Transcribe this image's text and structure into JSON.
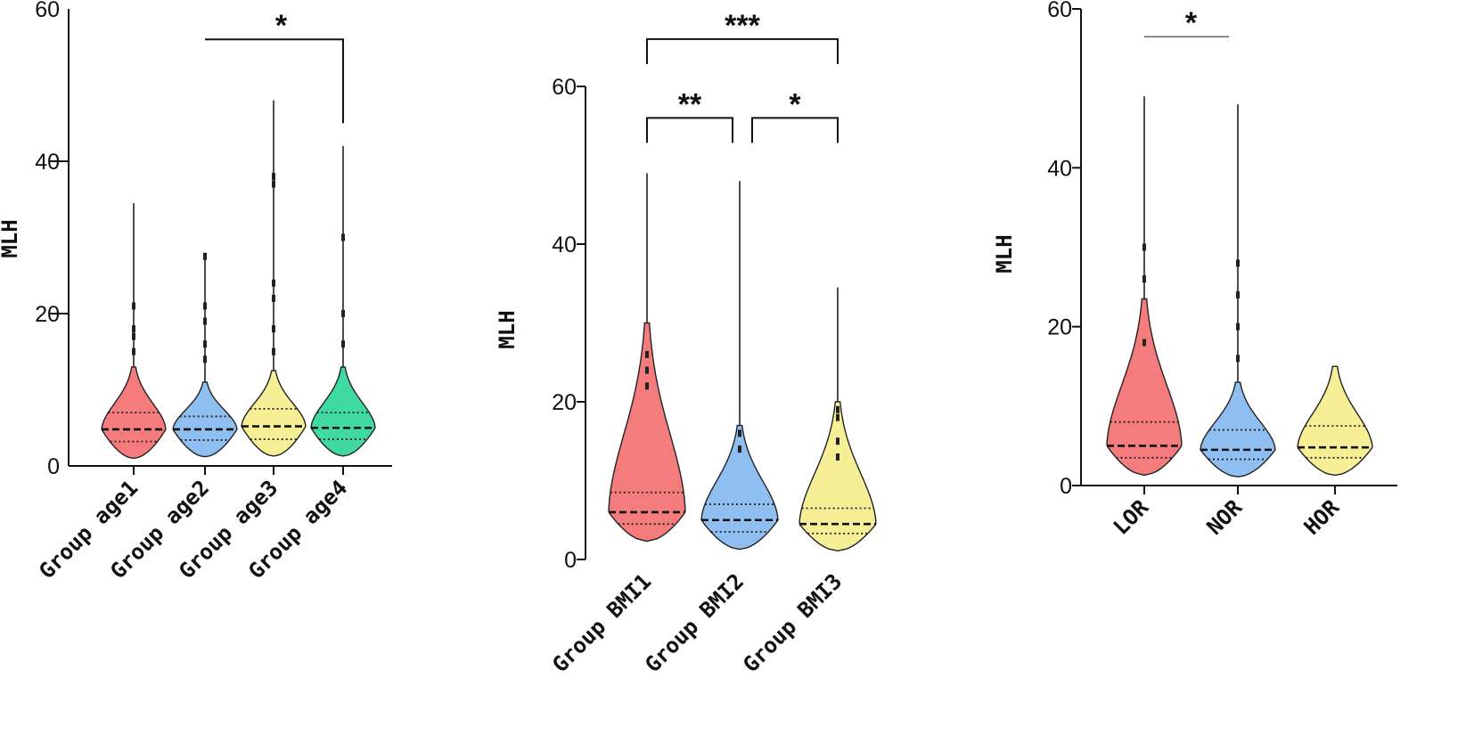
{
  "chart_data": [
    {
      "type": "violin",
      "ylabel": "MLH",
      "ylim": [
        0,
        60
      ],
      "yticks": [
        0,
        20,
        40,
        60
      ],
      "y_tick_marks": [
        20,
        40
      ],
      "categories": [
        "Group age1",
        "Group age2",
        "Group age3",
        "Group age4"
      ],
      "colors": [
        "#f47c7c",
        "#8fbff0",
        "#f7ef96",
        "#3fd9a1"
      ],
      "series": [
        {
          "median": 4.8,
          "q1": 3.2,
          "q3": 7.0,
          "max": 34.5,
          "dense_max": 13,
          "outliers": [
            15,
            17,
            18,
            21
          ]
        },
        {
          "median": 4.8,
          "q1": 3.4,
          "q3": 6.5,
          "max": 28,
          "dense_max": 11,
          "outliers": [
            14,
            16,
            19,
            21,
            27.5
          ]
        },
        {
          "median": 5.2,
          "q1": 3.5,
          "q3": 7.5,
          "max": 48,
          "dense_max": 12.5,
          "outliers": [
            15,
            18,
            22,
            24,
            37,
            38
          ]
        },
        {
          "median": 5.0,
          "q1": 3.5,
          "q3": 7.0,
          "max": 42,
          "dense_max": 13,
          "outliers": [
            16,
            20,
            30
          ]
        }
      ],
      "significance": [
        {
          "from": 1,
          "to": 3,
          "label": "*",
          "y": 56
        }
      ]
    },
    {
      "type": "violin",
      "ylabel": "MLH",
      "ylim": [
        0,
        60
      ],
      "yticks": [
        0,
        20,
        40,
        60
      ],
      "y_tick_marks": [],
      "categories": [
        "Group BMI1",
        "Group BMI2",
        "Group BMI3"
      ],
      "colors": [
        "#f47c7c",
        "#8fbff0",
        "#f7ef96"
      ],
      "series": [
        {
          "median": 6.0,
          "q1": 4.5,
          "q3": 8.5,
          "max": 49,
          "dense_max": 30,
          "outliers": [
            22,
            24,
            26
          ]
        },
        {
          "median": 5.0,
          "q1": 3.5,
          "q3": 7.0,
          "max": 48,
          "dense_max": 17,
          "outliers": [
            14,
            16
          ]
        },
        {
          "median": 4.5,
          "q1": 3.3,
          "q3": 6.5,
          "max": 34.5,
          "dense_max": 20,
          "outliers": [
            13,
            15,
            18,
            19
          ]
        }
      ],
      "significance": [
        {
          "from": 0,
          "to": 1,
          "label": "**",
          "y": 56
        },
        {
          "from": 1,
          "to": 2,
          "label": "*",
          "y": 56
        },
        {
          "from": 0,
          "to": 2,
          "label": "***",
          "y": 66
        }
      ]
    },
    {
      "type": "violin",
      "ylabel": "MLH",
      "ylim": [
        0,
        60
      ],
      "yticks": [
        0,
        20,
        40,
        60
      ],
      "y_tick_marks": [],
      "categories": [
        "LOR",
        "NOR",
        "HOR"
      ],
      "colors": [
        "#f47c7c",
        "#8fbff0",
        "#f7ef96"
      ],
      "series": [
        {
          "median": 5.0,
          "q1": 3.5,
          "q3": 8.0,
          "max": 49,
          "dense_max": 23.5,
          "outliers": [
            18,
            26,
            30
          ]
        },
        {
          "median": 4.5,
          "q1": 3.3,
          "q3": 7.0,
          "max": 48,
          "dense_max": 13,
          "outliers": [
            16,
            20,
            24,
            28
          ]
        },
        {
          "median": 4.8,
          "q1": 3.5,
          "q3": 7.5,
          "max": 15,
          "dense_max": 15,
          "outliers": []
        }
      ],
      "significance": [
        {
          "from": 0,
          "to": 1,
          "label": "*",
          "y": 56.5
        }
      ]
    }
  ]
}
